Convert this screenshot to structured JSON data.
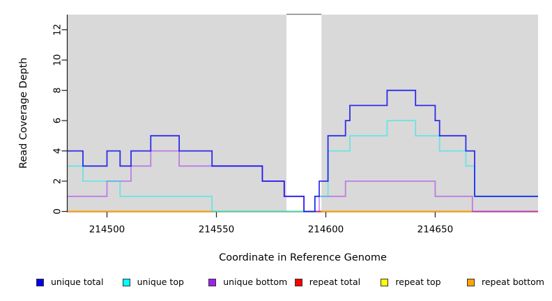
{
  "chart_data": {
    "type": "line",
    "subtype": "step-coverage",
    "title": "",
    "xlabel": "Coordinate in Reference Genome",
    "ylabel": "Read Coverage Depth",
    "xlim": [
      214482,
      214697
    ],
    "ylim": [
      0,
      13
    ],
    "xticks": [
      214500,
      214550,
      214600,
      214650
    ],
    "yticks": [
      0,
      2,
      4,
      6,
      8,
      10,
      12
    ],
    "grid": false,
    "legend_position": "bottom",
    "panel_bg": "#d9d9d9",
    "white_band": {
      "x0": 214582,
      "x1": 214598,
      "color": "#ffffff",
      "top_border_color": "#808080"
    },
    "axis_color": "#1a1a1a",
    "series": [
      {
        "name": "unique total",
        "color": "#0000ee",
        "line_opacity": 0.8,
        "points": [
          [
            214482,
            4
          ],
          [
            214489,
            3
          ],
          [
            214500,
            4
          ],
          [
            214506,
            3
          ],
          [
            214511,
            4
          ],
          [
            214520,
            5
          ],
          [
            214533,
            4
          ],
          [
            214548,
            3
          ],
          [
            214571,
            2
          ],
          [
            214581,
            1
          ],
          [
            214590,
            0
          ],
          [
            214595,
            1
          ],
          [
            214597,
            2
          ],
          [
            214601,
            5
          ],
          [
            214609,
            6
          ],
          [
            214611,
            7
          ],
          [
            214628,
            8
          ],
          [
            214641,
            7
          ],
          [
            214650,
            6
          ],
          [
            214652,
            5
          ],
          [
            214664,
            4
          ],
          [
            214668,
            1
          ]
        ]
      },
      {
        "name": "unique top",
        "color": "#00eeee",
        "line_opacity": 0.5,
        "points": [
          [
            214482,
            3
          ],
          [
            214489,
            2
          ],
          [
            214506,
            1
          ],
          [
            214548,
            0
          ],
          [
            214595,
            1
          ],
          [
            214601,
            4
          ],
          [
            214611,
            5
          ],
          [
            214628,
            6
          ],
          [
            214641,
            5
          ],
          [
            214652,
            4
          ],
          [
            214664,
            3
          ],
          [
            214668,
            1
          ]
        ]
      },
      {
        "name": "unique bottom",
        "color": "#a020f0",
        "line_opacity": 0.5,
        "points": [
          [
            214482,
            1
          ],
          [
            214500,
            2
          ],
          [
            214511,
            3
          ],
          [
            214520,
            4
          ],
          [
            214533,
            3
          ],
          [
            214571,
            2
          ],
          [
            214581,
            1
          ],
          [
            214590,
            0
          ],
          [
            214597,
            1
          ],
          [
            214609,
            2
          ],
          [
            214650,
            1
          ],
          [
            214667,
            0
          ]
        ]
      },
      {
        "name": "repeat total",
        "color": "#ee0000",
        "line_opacity": 0.85,
        "points": [
          [
            214482,
            0
          ]
        ]
      },
      {
        "name": "repeat top",
        "color": "#ffff00",
        "line_opacity": 1,
        "points": [
          [
            214482,
            0
          ]
        ]
      },
      {
        "name": "repeat bottom",
        "color": "#ffa500",
        "line_opacity": 1,
        "points": [
          [
            214482,
            0
          ]
        ]
      }
    ],
    "baseline_overlap_segments": [
      {
        "x0": 214548,
        "x1": 214595,
        "color": "#7cc87c"
      },
      {
        "x0": 214595,
        "x1": 214598,
        "color": "#e34234"
      },
      {
        "x0": 214667,
        "x1": 214697,
        "color": "#d85590"
      }
    ],
    "draw_order": [
      "repeat top",
      "repeat total",
      "repeat bottom",
      "unique bottom",
      "unique top",
      "unique total"
    ]
  },
  "legend": {
    "items": [
      {
        "label": "unique total",
        "color": "#0000ee"
      },
      {
        "label": "unique top",
        "color": "#00ffff"
      },
      {
        "label": "unique bottom",
        "color": "#a020f0"
      },
      {
        "label": "repeat total",
        "color": "#ff0000"
      },
      {
        "label": "repeat top",
        "color": "#ffff00"
      },
      {
        "label": "repeat bottom",
        "color": "#ffa500"
      }
    ]
  }
}
